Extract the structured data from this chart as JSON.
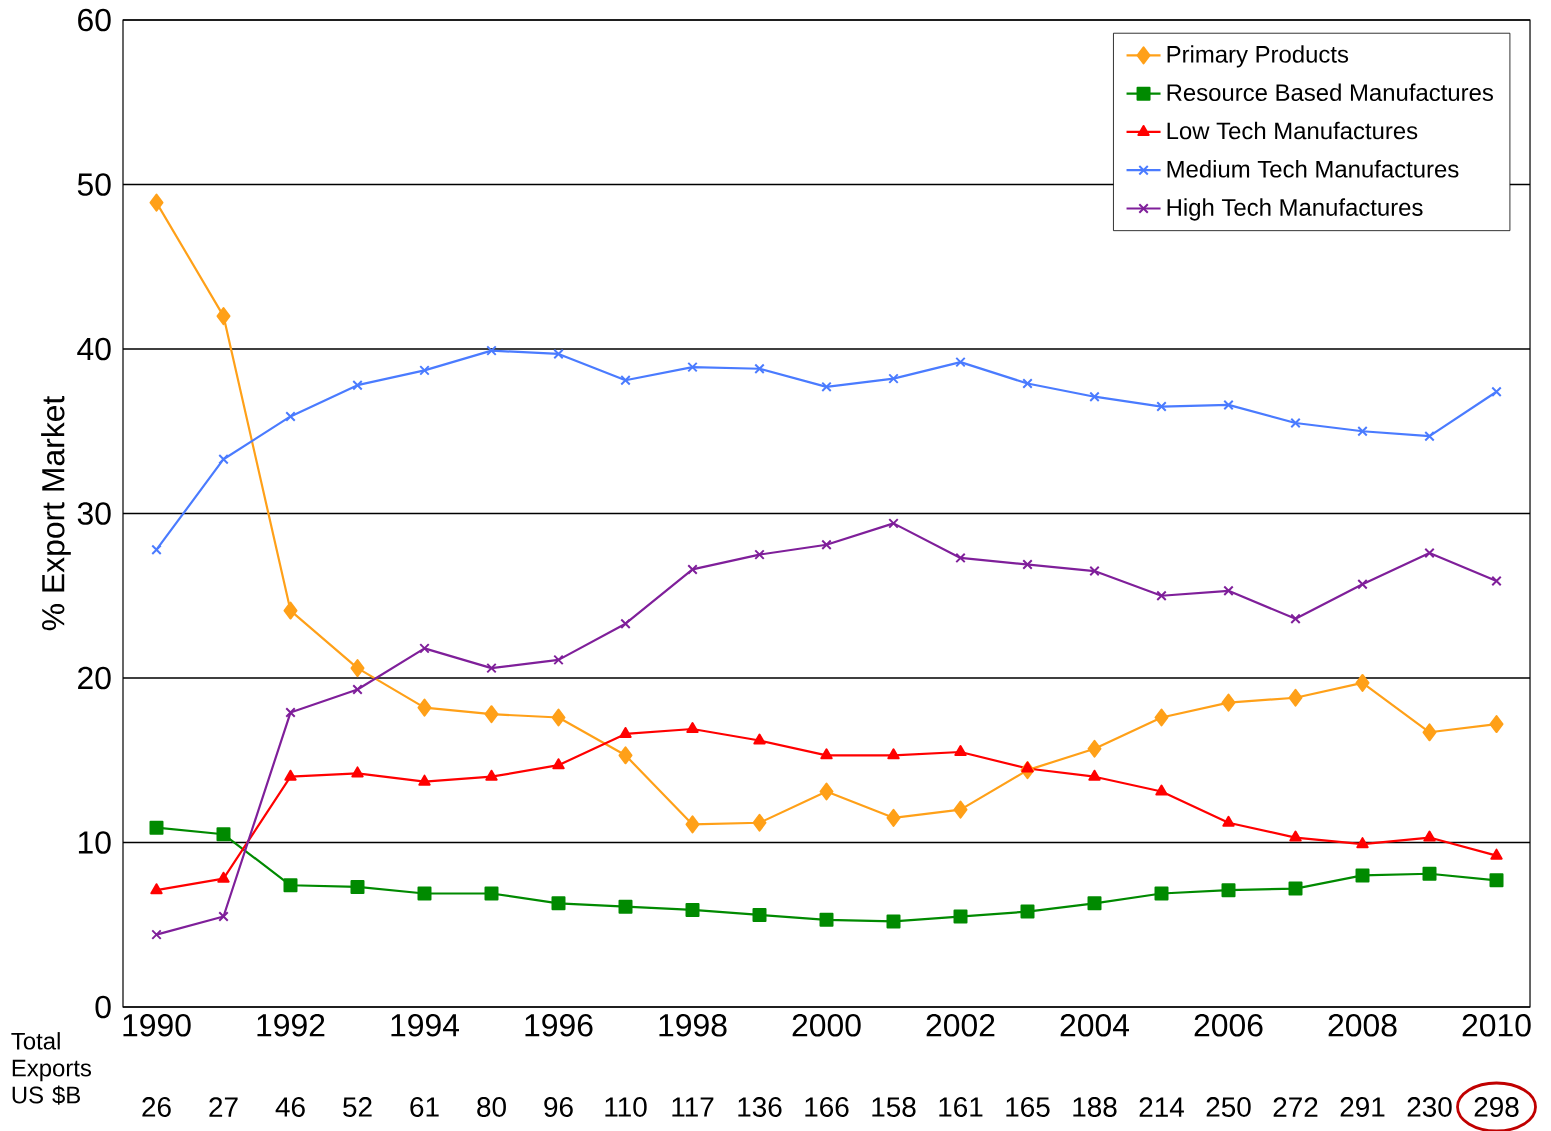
{
  "chart_data": {
    "type": "line",
    "ylabel": "% Export Market",
    "categories": [
      "1990",
      null,
      "1992",
      null,
      "1994",
      null,
      "1996",
      null,
      "1998",
      null,
      "2000",
      null,
      "2002",
      null,
      "2004",
      null,
      "2006",
      null,
      "2008",
      null,
      "2010"
    ],
    "ylim": [
      0,
      60
    ],
    "yticks": [
      0,
      10,
      20,
      30,
      40,
      50,
      60
    ],
    "grid": "y",
    "legend": "top right",
    "series": [
      {
        "name": "Primary Products",
        "color": "#ffa018",
        "marker": "diamond",
        "values": [
          48.9,
          42.0,
          24.1,
          20.6,
          18.2,
          17.8,
          17.6,
          15.3,
          11.1,
          11.2,
          13.1,
          11.5,
          12.0,
          14.4,
          15.7,
          17.6,
          18.5,
          18.8,
          19.7,
          16.7,
          17.2
        ]
      },
      {
        "name": "Resource Based Manufactures",
        "color": "#008a00",
        "marker": "square",
        "values": [
          10.9,
          10.5,
          7.4,
          7.3,
          6.9,
          6.9,
          6.3,
          6.1,
          5.9,
          5.6,
          5.3,
          5.2,
          5.5,
          5.8,
          6.3,
          6.9,
          7.1,
          7.2,
          8.0,
          8.1,
          7.7
        ]
      },
      {
        "name": "Low Tech Manufactures",
        "color": "#ff0000",
        "marker": "triangle",
        "values": [
          7.1,
          7.8,
          14.0,
          14.2,
          13.7,
          14.0,
          14.7,
          16.6,
          16.9,
          16.2,
          15.3,
          15.3,
          15.5,
          14.5,
          14.0,
          13.1,
          11.2,
          10.3,
          9.9,
          10.3,
          9.2
        ]
      },
      {
        "name": "Medium Tech Manufactures",
        "color": "#4a7bff",
        "marker": "cross",
        "values": [
          27.8,
          33.3,
          35.9,
          37.8,
          38.7,
          39.9,
          39.7,
          38.1,
          38.9,
          38.8,
          37.7,
          38.2,
          39.2,
          37.9,
          37.1,
          36.5,
          36.6,
          35.5,
          35.0,
          34.7,
          37.4
        ]
      },
      {
        "name": "High Tech Manufactures",
        "color": "#7f1f9a",
        "marker": "cross",
        "values": [
          4.4,
          5.5,
          17.9,
          19.3,
          21.8,
          20.6,
          21.1,
          23.3,
          26.6,
          27.5,
          28.1,
          29.4,
          27.3,
          26.9,
          26.5,
          25.0,
          25.3,
          23.6,
          25.7,
          27.6,
          25.9
        ]
      }
    ],
    "annotations": [
      "Total Exports US $B",
      "26",
      "27",
      "46",
      "52",
      "61",
      "80",
      "96",
      "110",
      "117",
      "136",
      "166",
      "158",
      "161",
      "165",
      "188",
      "214",
      "250",
      "272",
      "291",
      "230",
      "298"
    ]
  }
}
